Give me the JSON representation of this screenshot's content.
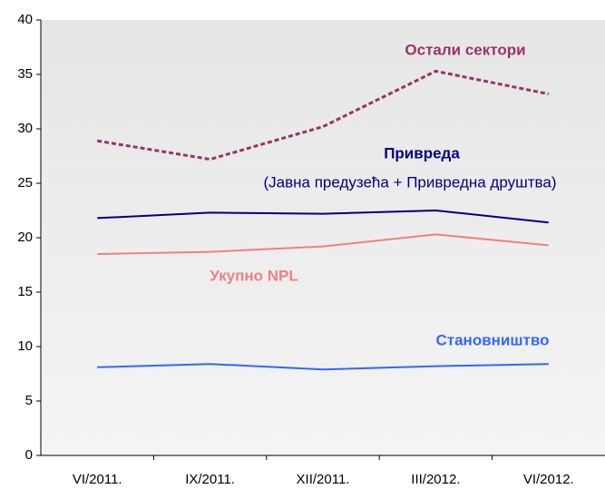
{
  "chart_data": {
    "type": "line",
    "categories": [
      "VI/2011.",
      "IX/2011.",
      "XII/2011.",
      "III/2012.",
      "VI/2012."
    ],
    "series": [
      {
        "name": "Остали сектори",
        "color": "#993366",
        "dashed": true,
        "values": [
          28.9,
          27.2,
          30.2,
          35.3,
          33.2
        ]
      },
      {
        "name": "Привреда",
        "color": "#000080",
        "dashed": false,
        "values": [
          21.8,
          22.3,
          22.2,
          22.5,
          21.4
        ]
      },
      {
        "name": "Укупно NPL",
        "color": "#f08080",
        "dashed": false,
        "values": [
          18.5,
          18.7,
          19.2,
          20.3,
          19.3
        ]
      },
      {
        "name": "Становништво",
        "color": "#3366ff",
        "dashed": false,
        "values": [
          8.1,
          8.4,
          7.9,
          8.2,
          8.4
        ]
      }
    ],
    "annotations": [
      "(Јавна предузећа + Привредна друштва)"
    ],
    "ylim": [
      0,
      40
    ],
    "yticks": [
      0,
      5,
      10,
      15,
      20,
      25,
      30,
      35,
      40
    ]
  }
}
